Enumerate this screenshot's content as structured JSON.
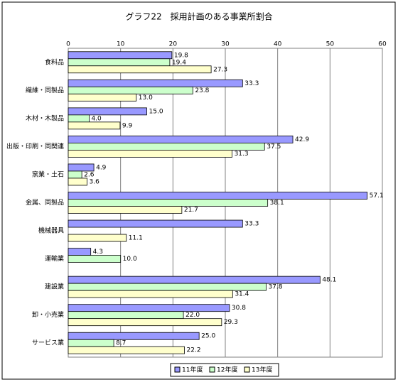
{
  "chart_data": {
    "type": "barh",
    "title": "グラフ22　採用計画のある事業所割合",
    "categories": [
      "食料品",
      "繊維・同製品",
      "木材・木製品",
      "出版・印刷・同関連",
      "窯業・土石",
      "金属、同製品",
      "機械器具",
      "運輸業",
      "建設業",
      "卸・小売業",
      "サービス業"
    ],
    "series": [
      {
        "name": "11年度",
        "color": "#9999ff",
        "values": [
          19.8,
          33.3,
          15.0,
          42.9,
          4.9,
          57.1,
          33.3,
          4.3,
          48.1,
          30.8,
          25.0
        ],
        "value_labels": [
          "19.8",
          "33.3",
          "15.0",
          "42.9",
          "4.9",
          "57.1",
          "33.3",
          "4.3",
          "48.1",
          "30.8",
          "25.0"
        ]
      },
      {
        "name": "12年度",
        "color": "#ccffcc",
        "values": [
          19.4,
          23.8,
          4.0,
          37.5,
          2.6,
          38.1,
          null,
          10.0,
          37.8,
          22.0,
          8.7
        ],
        "value_labels": [
          "19.4",
          "23.8",
          "4.0",
          "37.5",
          "2.6",
          "38.1",
          null,
          "10.0",
          "37.8",
          "22.0",
          "8.7"
        ]
      },
      {
        "name": "13年度",
        "color": "#ffffcc",
        "values": [
          27.3,
          13.0,
          9.9,
          31.3,
          3.6,
          21.7,
          11.1,
          null,
          31.4,
          29.3,
          22.2
        ],
        "value_labels": [
          "27.3",
          "13.0",
          "9.9",
          "31.3",
          "3.6",
          "21.7",
          "11.1",
          null,
          "31.4",
          "29.3",
          "22.2"
        ]
      }
    ],
    "xlim": [
      0,
      60
    ],
    "xticks": [
      0,
      10,
      20,
      30,
      40,
      50,
      60
    ],
    "grid": true,
    "legend": "bottom"
  }
}
